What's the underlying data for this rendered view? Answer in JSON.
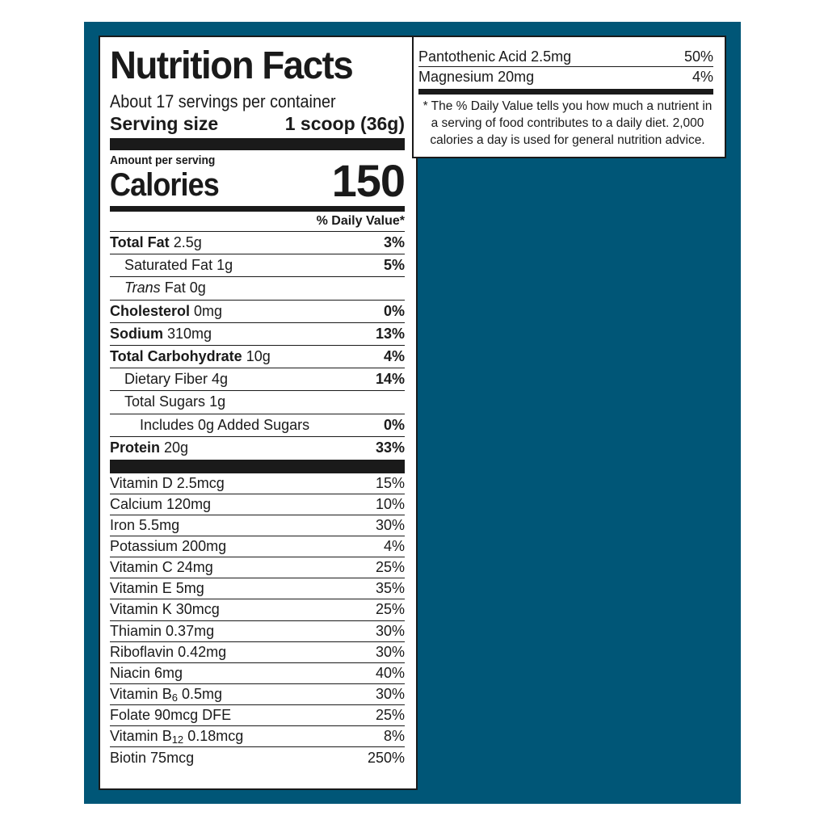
{
  "label": {
    "title": "Nutrition Facts",
    "servings_per_container": "About 17 servings per container",
    "serving_size_label": "Serving size",
    "serving_size_value": "1 scoop (36g)",
    "amount_per_serving": "Amount per serving",
    "calories_label": "Calories",
    "calories_value": "150",
    "daily_value_header": "% Daily Value*"
  },
  "nutrients": [
    {
      "name": "Total Fat",
      "amount": "2.5g",
      "dv": "3%"
    },
    {
      "name": "Saturated Fat",
      "amount": "1g",
      "dv": "5%"
    },
    {
      "name_italic": "Trans",
      "name": "Fat",
      "amount": "0g",
      "dv": ""
    },
    {
      "name": "Cholesterol",
      "amount": "0mg",
      "dv": "0%"
    },
    {
      "name": "Sodium",
      "amount": "310mg",
      "dv": "13%"
    },
    {
      "name": "Total Carbohydrate",
      "amount": "10g",
      "dv": "4%"
    },
    {
      "name": "Dietary Fiber",
      "amount": "4g",
      "dv": "14%"
    },
    {
      "name": "Total Sugars",
      "amount": "1g",
      "dv": ""
    },
    {
      "name": "Includes 0g Added Sugars",
      "amount": "",
      "dv": "0%"
    },
    {
      "name": "Protein",
      "amount": "20g",
      "dv": "33%"
    }
  ],
  "vitamins": [
    {
      "name": "Vitamin D",
      "amount": "2.5mcg",
      "dv": "15%"
    },
    {
      "name": "Calcium",
      "amount": "120mg",
      "dv": "10%"
    },
    {
      "name": "Iron",
      "amount": "5.5mg",
      "dv": "30%"
    },
    {
      "name": "Potassium",
      "amount": "200mg",
      "dv": "4%"
    },
    {
      "name": "Vitamin C",
      "amount": "24mg",
      "dv": "25%"
    },
    {
      "name": "Vitamin E",
      "amount": "5mg",
      "dv": "35%"
    },
    {
      "name": "Vitamin K",
      "amount": "30mcg",
      "dv": "25%"
    },
    {
      "name": "Thiamin",
      "amount": "0.37mg",
      "dv": "30%"
    },
    {
      "name": "Riboflavin",
      "amount": "0.42mg",
      "dv": "30%"
    },
    {
      "name": "Niacin",
      "amount": "6mg",
      "dv": "40%"
    },
    {
      "name": "Vitamin B",
      "sub": "6",
      "amount": "0.5mg",
      "dv": "30%"
    },
    {
      "name": "Folate",
      "amount": "90mcg DFE",
      "dv": "25%"
    },
    {
      "name": "Vitamin B",
      "sub": "12",
      "amount": "0.18mcg",
      "dv": "8%"
    },
    {
      "name": "Biotin",
      "amount": "75mcg",
      "dv": "250%"
    }
  ],
  "continued": [
    {
      "name": "Pantothenic Acid",
      "amount": "2.5mg",
      "dv": "50%"
    },
    {
      "name": "Magnesium",
      "amount": "20mg",
      "dv": "4%"
    }
  ],
  "footnote": "* The % Daily Value tells you how much a nutrient in a serving of food contributes to a daily diet. 2,000 calories a day is used for general nutrition advice.",
  "colors": {
    "background": "#005677",
    "panel": "#ffffff",
    "ink": "#1a1a1a"
  }
}
